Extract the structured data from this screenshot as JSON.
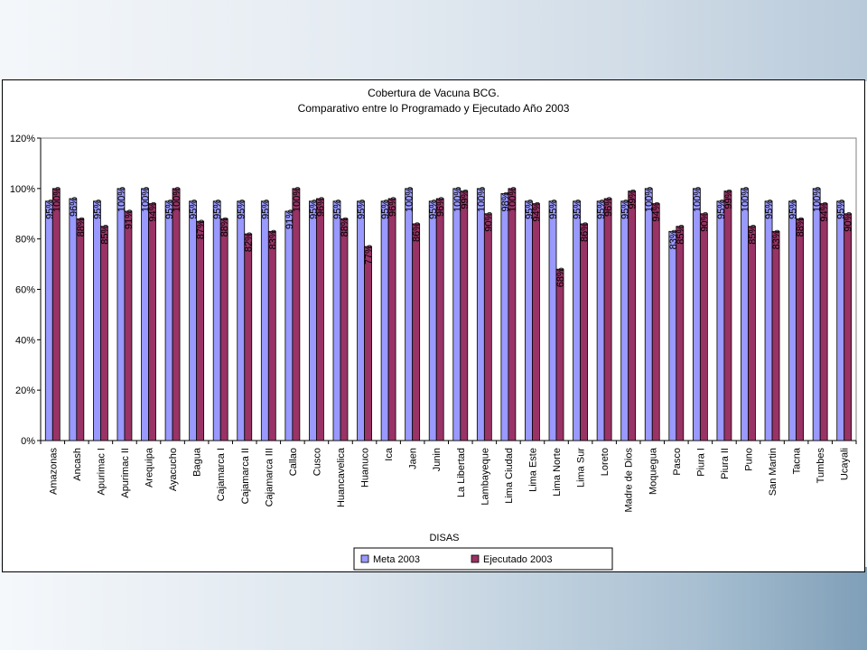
{
  "chart_data": {
    "type": "bar",
    "title": [
      "Cobertura de Vacuna BCG.",
      "Comparativo entre lo Programado y Ejecutado Año 2003"
    ],
    "xlabel": "DISAS",
    "ylabel": "",
    "ylim": [
      0,
      120
    ],
    "yticks": [
      0,
      20,
      40,
      60,
      80,
      100,
      120
    ],
    "ytick_labels": [
      "0%",
      "20%",
      "40%",
      "60%",
      "80%",
      "100%",
      "120%"
    ],
    "grid": false,
    "legend_position": "bottom",
    "categories": [
      "Amazonas",
      "Ancash",
      "Apurimac I",
      "Apurimac II",
      "Arequipa",
      "Ayacucho",
      "Bagua",
      "Cajamarca I",
      "Cajamarca II",
      "Cajamarca III",
      "Callao",
      "Cusco",
      "Huancavelica",
      "Huanuco",
      "Ica",
      "Jaen",
      "Junin",
      "La Libertad",
      "Lambayeque",
      "Lima Ciudad",
      "Lima Este",
      "Lima Norte",
      "Lima Sur",
      "Loreto",
      "Madre de Dios",
      "Moquegua",
      "Pasco",
      "Piura I",
      "Piura II",
      "Puno",
      "San Martin",
      "Tacna",
      "Tumbes",
      "Ucayali"
    ],
    "series": [
      {
        "name": "Meta 2003",
        "color": "#9999ff",
        "values": [
          95,
          96,
          95,
          100,
          100,
          95,
          95,
          95,
          95,
          95,
          91,
          95,
          95,
          95,
          95,
          100,
          95,
          100,
          100,
          98,
          95,
          95,
          95,
          95,
          95,
          100,
          83,
          100,
          95,
          100,
          95,
          95,
          100,
          95
        ],
        "labels": [
          "95%",
          "96%",
          "95%",
          "100%",
          "100%",
          "95%",
          "95%",
          "95%",
          "95%",
          "95%",
          "91%",
          "95%",
          "95%",
          "95%",
          "95%",
          "100%",
          "95%",
          "100%",
          "100%",
          "98%",
          "95%",
          "95%",
          "95%",
          "95%",
          "95%",
          "100%",
          "83%",
          "100%",
          "95%",
          "100%",
          "95%",
          "95%",
          "100%",
          "95%"
        ]
      },
      {
        "name": "Ejecutado 2003",
        "color": "#993366",
        "values": [
          100,
          88,
          85,
          91,
          94,
          100,
          87,
          88,
          82,
          83,
          100,
          96,
          88,
          77,
          96,
          86,
          96,
          99,
          90,
          100,
          94,
          68,
          86,
          96,
          99,
          94,
          85,
          90,
          99,
          85,
          83,
          88,
          94,
          90
        ],
        "labels": [
          "100%",
          "88%",
          "85%",
          "91%",
          "94%",
          "100%",
          "87%",
          "88%",
          "82%",
          "83%",
          "100%",
          "96%",
          "88%",
          "77%",
          "96%",
          "86%",
          "96%",
          "99%",
          "90%",
          "100%",
          "94%",
          "68%",
          "86%",
          "96%",
          "99%",
          "94%",
          "85%",
          "90%",
          "99%",
          "85%",
          "83%",
          "88%",
          "94%",
          "90%"
        ]
      }
    ]
  }
}
